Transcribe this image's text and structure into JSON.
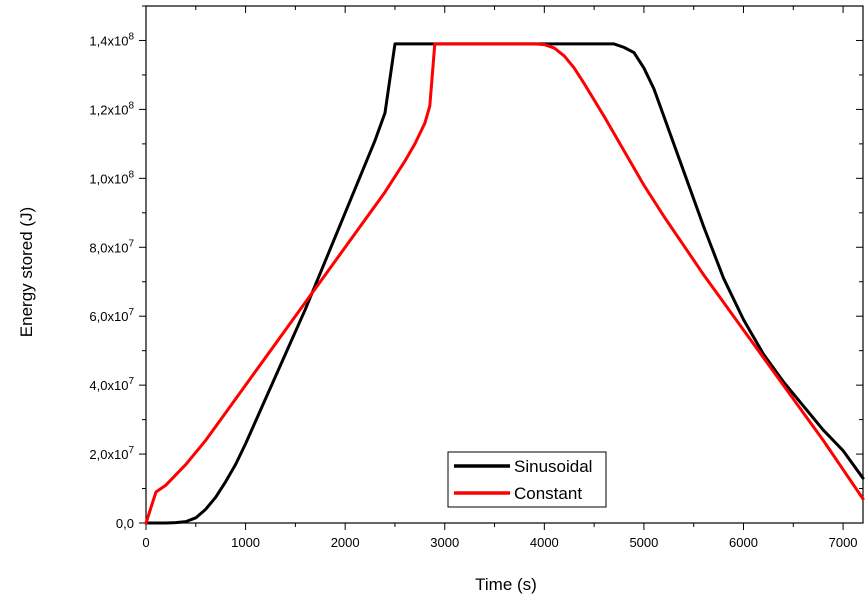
{
  "chart_data": {
    "type": "line",
    "title": "",
    "xlabel": "Time (s)",
    "ylabel": "Energy stored (J)",
    "xlim": [
      0,
      7200
    ],
    "ylim": [
      0,
      150000000
    ],
    "x_ticks": [
      0,
      1000,
      2000,
      3000,
      4000,
      5000,
      6000,
      7000
    ],
    "x_tick_labels": [
      "0",
      "1000",
      "2000",
      "3000",
      "4000",
      "5000",
      "6000",
      "7000"
    ],
    "y_ticks": [
      0,
      20000000,
      40000000,
      60000000,
      80000000,
      100000000,
      120000000,
      140000000
    ],
    "y_tick_labels": [
      {
        "mantissa": "0,0",
        "exponent": ""
      },
      {
        "mantissa": "2,0x10",
        "exponent": "7"
      },
      {
        "mantissa": "4,0x10",
        "exponent": "7"
      },
      {
        "mantissa": "6,0x10",
        "exponent": "7"
      },
      {
        "mantissa": "8,0x10",
        "exponent": "7"
      },
      {
        "mantissa": "1,0x10",
        "exponent": "8"
      },
      {
        "mantissa": "1,2x10",
        "exponent": "8"
      },
      {
        "mantissa": "1,4x10",
        "exponent": "8"
      }
    ],
    "grid": false,
    "legend_position": "bottom-center",
    "series": [
      {
        "name": "Sinusoidal",
        "color": "#000000",
        "x": [
          0,
          200,
          300,
          400,
          500,
          600,
          700,
          800,
          900,
          1000,
          1200,
          1400,
          1600,
          1800,
          2000,
          2200,
          2300,
          2400,
          2500,
          3000,
          3500,
          4000,
          4500,
          4700,
          4800,
          4900,
          5000,
          5100,
          5200,
          5400,
          5600,
          5800,
          6000,
          6200,
          6400,
          6600,
          6800,
          7000,
          7200
        ],
        "y": [
          0,
          0,
          100000,
          400000,
          1500000,
          4000000,
          7500000,
          12000000,
          17000000,
          23000000,
          36000000,
          49000000,
          62000000,
          76000000,
          90000000,
          104000000,
          111000000,
          119000000,
          139000000,
          139000000,
          139000000,
          139000000,
          139000000,
          139000000,
          138000000,
          136500000,
          132000000,
          126000000,
          118000000,
          102000000,
          86000000,
          71000000,
          59000000,
          49000000,
          41000000,
          34000000,
          27000000,
          21000000,
          13000000
        ]
      },
      {
        "name": "Constant",
        "color": "#ff0000",
        "x": [
          0,
          100,
          200,
          400,
          600,
          800,
          1000,
          1200,
          1400,
          1600,
          1800,
          2000,
          2200,
          2400,
          2600,
          2700,
          2800,
          2850,
          2900,
          3000,
          3500,
          3900,
          4000,
          4100,
          4200,
          4300,
          4400,
          4600,
          4800,
          5000,
          5200,
          5400,
          5600,
          5800,
          6000,
          6200,
          6400,
          6600,
          6800,
          7000,
          7200
        ],
        "y": [
          0,
          9000000,
          11000000,
          17000000,
          24000000,
          32000000,
          40000000,
          48000000,
          56000000,
          64000000,
          72000000,
          80000000,
          88000000,
          96000000,
          105000000,
          110000000,
          116000000,
          121000000,
          139000000,
          139000000,
          139000000,
          139000000,
          138800000,
          137800000,
          135500000,
          132000000,
          127500000,
          118000000,
          108000000,
          98000000,
          89000000,
          80500000,
          72000000,
          64000000,
          56000000,
          48000000,
          40000000,
          32000000,
          24000000,
          15500000,
          7000000
        ]
      }
    ]
  }
}
